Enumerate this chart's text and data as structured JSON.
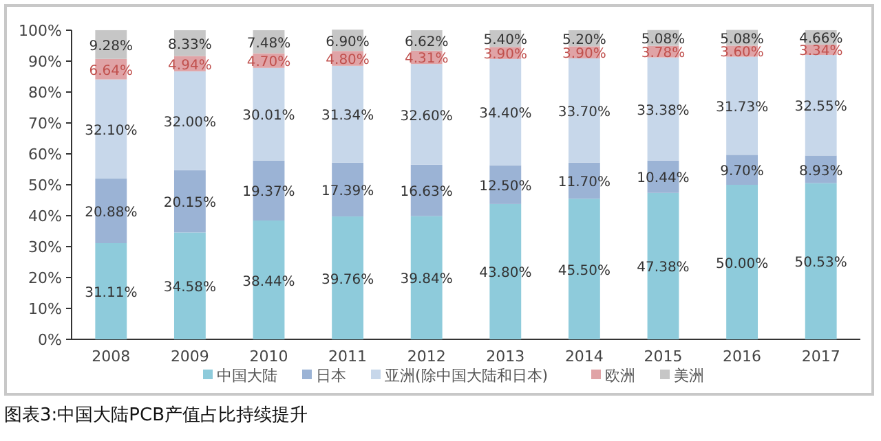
{
  "chart_data": {
    "type": "bar",
    "stacked": true,
    "categories": [
      "2008",
      "2009",
      "2010",
      "2011",
      "2012",
      "2013",
      "2014",
      "2015",
      "2016",
      "2017"
    ],
    "series": [
      {
        "name": "中国大陆",
        "color": "#8ecbdb",
        "values": [
          31.11,
          34.58,
          38.44,
          39.76,
          39.84,
          43.8,
          45.5,
          47.38,
          50,
          50.53
        ],
        "value_labels": [
          "31.11%",
          "34.58%",
          "38.44%",
          "39.76%",
          "39.84%",
          "43.80%",
          "45.50%",
          "47.38%",
          "50.00%",
          "50.53%"
        ]
      },
      {
        "name": "日本",
        "color": "#9bb3d5",
        "values": [
          20.88,
          20.15,
          19.37,
          17.39,
          16.63,
          12.5,
          11.7,
          10.44,
          9.7,
          8.93
        ],
        "value_labels": [
          "20.88%",
          "20.15%",
          "19.37%",
          "17.39%",
          "16.63%",
          "12.50%",
          "11.70%",
          "10.44%",
          "9.70%",
          "8.93%"
        ]
      },
      {
        "name": "亚洲(除中国大陆和日本)",
        "color": "#c7d7ea",
        "values": [
          32.1,
          32,
          30.01,
          31.34,
          32.6,
          34.4,
          33.7,
          33.38,
          31.73,
          32.55
        ],
        "value_labels": [
          "32.10%",
          "32.00%",
          "30.01%",
          "31.34%",
          "32.60%",
          "34.40%",
          "33.70%",
          "33.38%",
          "31.73%",
          "32.55%"
        ]
      },
      {
        "name": "欧洲",
        "color": "#e0a3a6",
        "values": [
          6.64,
          4.94,
          4.7,
          4.8,
          4.31,
          3.9,
          3.9,
          3.78,
          3.6,
          3.34
        ],
        "value_labels": [
          "6.64%",
          "4.94%",
          "4.70%",
          "4.80%",
          "4.31%",
          "3.90%",
          "3.90%",
          "3.78%",
          "3.60%",
          "3.34%"
        ]
      },
      {
        "name": "美洲",
        "color": "#c6c6c6",
        "values": [
          9.28,
          8.33,
          7.48,
          6.9,
          6.62,
          5.4,
          5.2,
          5.08,
          5.08,
          4.66
        ],
        "value_labels": [
          "9.28%",
          "8.33%",
          "7.48%",
          "6.90%",
          "6.62%",
          "5.40%",
          "5.20%",
          "5.08%",
          "5.08%",
          "4.66%"
        ]
      }
    ],
    "ylim": [
      0,
      100
    ],
    "yticks": [
      {
        "value": 0,
        "label": "0%"
      },
      {
        "value": 10,
        "label": "10%"
      },
      {
        "value": 20,
        "label": "20%"
      },
      {
        "value": 30,
        "label": "30%"
      },
      {
        "value": 40,
        "label": "40%"
      },
      {
        "value": 50,
        "label": "50%"
      },
      {
        "value": 60,
        "label": "60%"
      },
      {
        "value": 70,
        "label": "70%"
      },
      {
        "value": 80,
        "label": "80%"
      },
      {
        "value": 90,
        "label": "90%"
      },
      {
        "value": 100,
        "label": "100%"
      }
    ],
    "legend": "bottom",
    "annotations": [
      "图表3:中国大陆PCB产值占比持续提升"
    ]
  }
}
